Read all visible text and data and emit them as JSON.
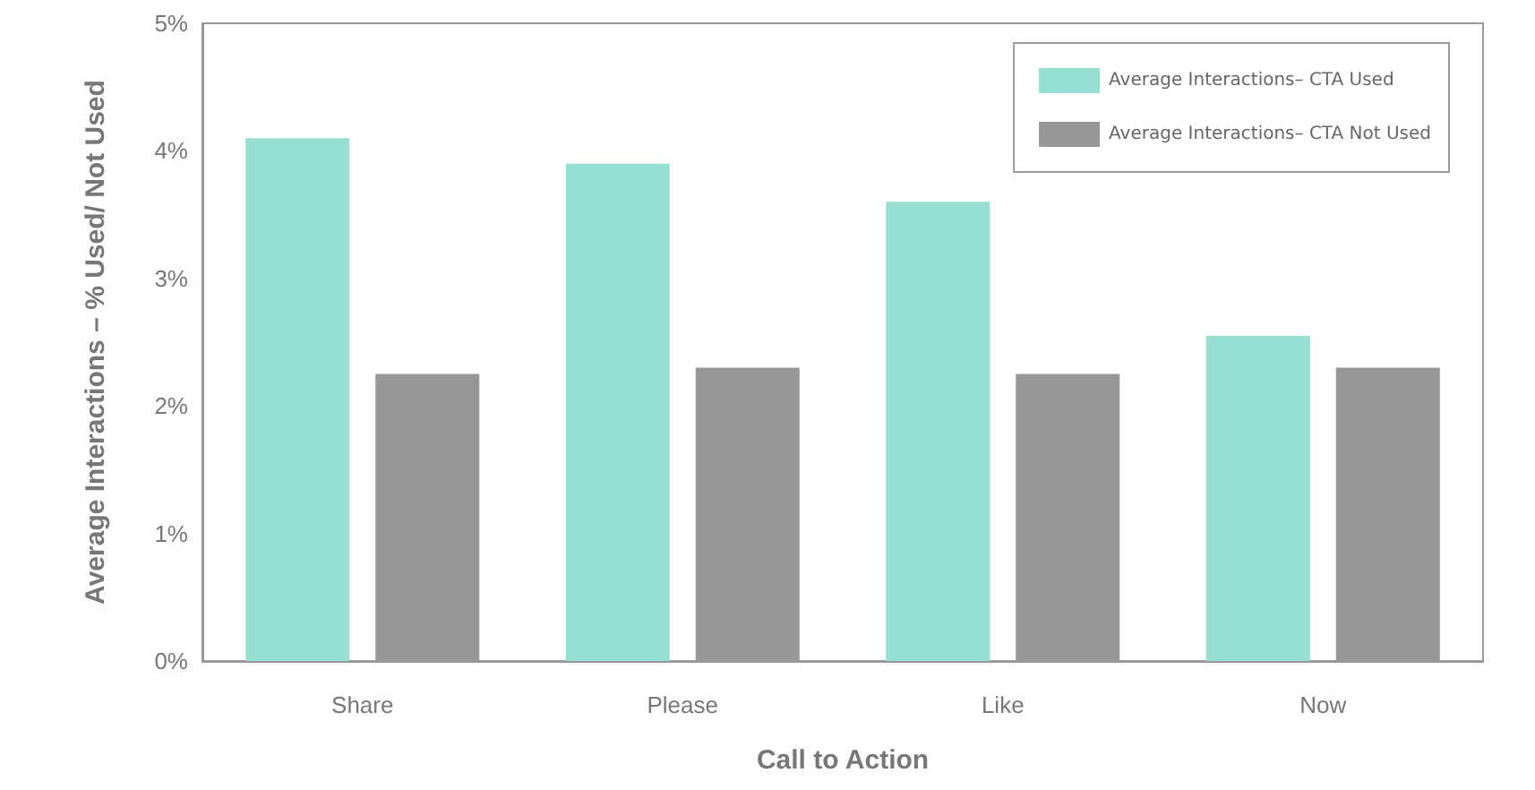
{
  "chart_data": {
    "type": "bar",
    "xlabel": "Call to Action",
    "ylabel": "Average Interactions – % Used/ Not Used",
    "categories": [
      "Share",
      "Please",
      "Like",
      "Now"
    ],
    "series": [
      {
        "name": "Average Interactions– CTA Used",
        "color": "#97ded3",
        "values": [
          4.1,
          3.9,
          3.6,
          2.55
        ]
      },
      {
        "name": "Average Interactions– CTA Not Used",
        "color": "#979797",
        "values": [
          2.25,
          2.3,
          2.25,
          2.3
        ]
      }
    ],
    "ylim": [
      0,
      5
    ],
    "yticks": [
      {
        "value": 0,
        "label": "0%"
      },
      {
        "value": 1,
        "label": "1%"
      },
      {
        "value": 2,
        "label": "2%"
      },
      {
        "value": 3,
        "label": "3%"
      },
      {
        "value": 4,
        "label": "4%"
      },
      {
        "value": 5,
        "label": "5%"
      }
    ],
    "grid": false,
    "legend": "top right"
  }
}
